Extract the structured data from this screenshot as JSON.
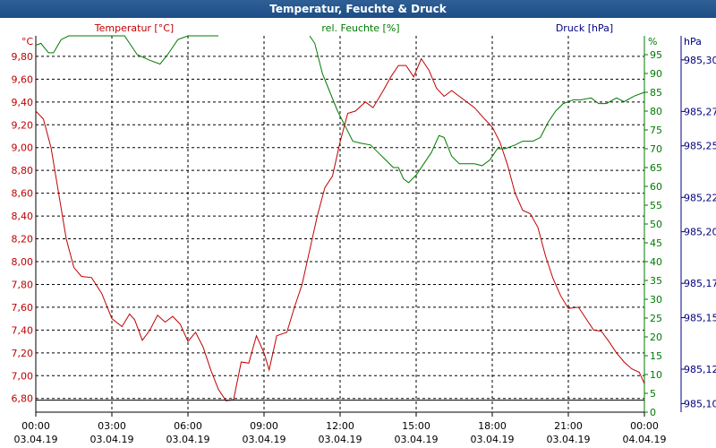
{
  "window": {
    "title": "Temperatur, Feuchte & Druck"
  },
  "colors": {
    "temperature": "#c00000",
    "humidity": "#007a00",
    "pressure": "#000080",
    "grid": "#000000",
    "titlebar": "#1d4e87"
  },
  "chart_data": {
    "type": "line",
    "title": "Temperatur, Feuchte & Druck",
    "grid": true,
    "x_ticks": [
      {
        "h": 0,
        "time": "00:00",
        "date": "03.04.19"
      },
      {
        "h": 3,
        "time": "03:00",
        "date": "03.04.19"
      },
      {
        "h": 6,
        "time": "06:00",
        "date": "03.04.19"
      },
      {
        "h": 9,
        "time": "09:00",
        "date": "03.04.19"
      },
      {
        "h": 12,
        "time": "12:00",
        "date": "03.04.19"
      },
      {
        "h": 15,
        "time": "15:00",
        "date": "03.04.19"
      },
      {
        "h": 18,
        "time": "18:00",
        "date": "03.04.19"
      },
      {
        "h": 21,
        "time": "21:00",
        "date": "03.04.19"
      },
      {
        "h": 24,
        "time": "00:00",
        "date": "04.04.19"
      }
    ],
    "axes": {
      "temperature": {
        "label": "Temperatur [°C]",
        "unit": "°C",
        "range": [
          6.68,
          9.98
        ],
        "ticks": [
          "6,80",
          "7,00",
          "7,20",
          "7,40",
          "7,60",
          "7,80",
          "8,00",
          "8,20",
          "8,40",
          "8,60",
          "8,80",
          "9,00",
          "9,20",
          "9,40",
          "9,60",
          "9,80"
        ]
      },
      "humidity": {
        "label": "rel. Feuchte [%]",
        "unit": "%",
        "range": [
          0,
          100
        ],
        "ticks": [
          "0",
          "5",
          "10",
          "15",
          "20",
          "25",
          "30",
          "35",
          "40",
          "45",
          "50",
          "55",
          "60",
          "65",
          "70",
          "75",
          "80",
          "85",
          "90",
          "95"
        ]
      },
      "pressure": {
        "label": "Druck [hPa]",
        "unit": "hPa",
        "range": [
          985.095,
          985.314
        ],
        "ticks": [
          "985,10",
          "985,12",
          "985,15",
          "985,17",
          "985,20",
          "985,22",
          "985,25",
          "985,27",
          "985,30"
        ]
      }
    },
    "series": [
      {
        "name": "Temperatur [°C]",
        "axis": "temperature",
        "points": [
          [
            0,
            9.32
          ],
          [
            0.3,
            9.25
          ],
          [
            0.6,
            9.0
          ],
          [
            0.9,
            8.6
          ],
          [
            1.2,
            8.2
          ],
          [
            1.5,
            7.95
          ],
          [
            1.8,
            7.87
          ],
          [
            2.2,
            7.86
          ],
          [
            2.6,
            7.72
          ],
          [
            3.0,
            7.5
          ],
          [
            3.4,
            7.43
          ],
          [
            3.7,
            7.54
          ],
          [
            3.9,
            7.49
          ],
          [
            4.2,
            7.31
          ],
          [
            4.5,
            7.4
          ],
          [
            4.8,
            7.53
          ],
          [
            5.1,
            7.47
          ],
          [
            5.4,
            7.52
          ],
          [
            5.7,
            7.45
          ],
          [
            6.0,
            7.3
          ],
          [
            6.3,
            7.38
          ],
          [
            6.6,
            7.25
          ],
          [
            6.9,
            7.05
          ],
          [
            7.2,
            6.88
          ],
          [
            7.5,
            6.78
          ],
          [
            7.8,
            6.79
          ],
          [
            8.1,
            7.12
          ],
          [
            8.4,
            7.11
          ],
          [
            8.7,
            7.35
          ],
          [
            9.0,
            7.2
          ],
          [
            9.2,
            7.05
          ],
          [
            9.5,
            7.35
          ],
          [
            9.9,
            7.38
          ],
          [
            10.2,
            7.6
          ],
          [
            10.5,
            7.8
          ],
          [
            10.8,
            8.1
          ],
          [
            11.1,
            8.4
          ],
          [
            11.4,
            8.65
          ],
          [
            11.7,
            8.75
          ],
          [
            12.0,
            9.05
          ],
          [
            12.3,
            9.3
          ],
          [
            12.6,
            9.32
          ],
          [
            13.0,
            9.4
          ],
          [
            13.3,
            9.35
          ],
          [
            13.7,
            9.5
          ],
          [
            14.0,
            9.62
          ],
          [
            14.3,
            9.72
          ],
          [
            14.6,
            9.72
          ],
          [
            14.9,
            9.62
          ],
          [
            15.2,
            9.78
          ],
          [
            15.5,
            9.68
          ],
          [
            15.8,
            9.52
          ],
          [
            16.1,
            9.45
          ],
          [
            16.4,
            9.5
          ],
          [
            16.7,
            9.45
          ],
          [
            17.0,
            9.4
          ],
          [
            17.3,
            9.35
          ],
          [
            17.7,
            9.25
          ],
          [
            18.0,
            9.18
          ],
          [
            18.3,
            9.05
          ],
          [
            18.6,
            8.85
          ],
          [
            18.9,
            8.6
          ],
          [
            19.2,
            8.45
          ],
          [
            19.5,
            8.42
          ],
          [
            19.8,
            8.3
          ],
          [
            20.1,
            8.05
          ],
          [
            20.4,
            7.85
          ],
          [
            20.7,
            7.7
          ],
          [
            21.0,
            7.59
          ],
          [
            21.4,
            7.6
          ],
          [
            21.7,
            7.5
          ],
          [
            22.0,
            7.4
          ],
          [
            22.3,
            7.39
          ],
          [
            22.6,
            7.3
          ],
          [
            22.9,
            7.2
          ],
          [
            23.2,
            7.12
          ],
          [
            23.5,
            7.06
          ],
          [
            23.8,
            7.03
          ],
          [
            24.0,
            6.93
          ]
        ]
      },
      {
        "name": "rel. Feuchte [%]",
        "axis": "humidity",
        "points": [
          [
            0,
            97.5
          ],
          [
            0.2,
            98
          ],
          [
            0.5,
            95.5
          ],
          [
            0.7,
            95.5
          ],
          [
            1.0,
            99
          ],
          [
            1.3,
            100
          ],
          [
            3.5,
            100
          ],
          [
            4.0,
            95
          ],
          [
            4.5,
            93.5
          ],
          [
            4.9,
            92.5
          ],
          [
            5.2,
            95
          ],
          [
            5.6,
            99
          ],
          [
            6.0,
            100
          ],
          [
            7.2,
            100
          ],
          [
            7.3,
            null
          ],
          [
            10.7,
            null
          ],
          [
            10.8,
            100
          ],
          [
            11.0,
            98
          ],
          [
            11.3,
            90
          ],
          [
            11.6,
            85
          ],
          [
            11.9,
            80
          ],
          [
            12.2,
            76
          ],
          [
            12.5,
            72
          ],
          [
            12.8,
            71.5
          ],
          [
            13.2,
            71
          ],
          [
            13.5,
            69
          ],
          [
            13.8,
            67
          ],
          [
            14.1,
            65
          ],
          [
            14.3,
            65
          ],
          [
            14.5,
            62
          ],
          [
            14.7,
            61
          ],
          [
            15.0,
            63
          ],
          [
            15.3,
            66
          ],
          [
            15.6,
            69
          ],
          [
            15.9,
            73.5
          ],
          [
            16.1,
            73
          ],
          [
            16.4,
            68
          ],
          [
            16.7,
            66
          ],
          [
            17.0,
            66
          ],
          [
            17.3,
            66
          ],
          [
            17.6,
            65.5
          ],
          [
            17.9,
            67
          ],
          [
            18.2,
            70
          ],
          [
            18.5,
            70
          ],
          [
            18.9,
            71
          ],
          [
            19.2,
            72
          ],
          [
            19.6,
            72
          ],
          [
            19.9,
            73
          ],
          [
            20.2,
            77
          ],
          [
            20.5,
            80
          ],
          [
            20.8,
            82
          ],
          [
            21.2,
            83
          ],
          [
            21.5,
            83
          ],
          [
            21.9,
            83.5
          ],
          [
            22.2,
            82
          ],
          [
            22.5,
            82
          ],
          [
            22.9,
            83.5
          ],
          [
            23.2,
            82.5
          ],
          [
            23.6,
            84
          ],
          [
            24.0,
            85
          ]
        ]
      },
      {
        "name": "Druck [hPa]",
        "axis": "pressure",
        "points": [
          [
            0,
            985.102
          ],
          [
            24,
            985.102
          ]
        ]
      }
    ]
  }
}
